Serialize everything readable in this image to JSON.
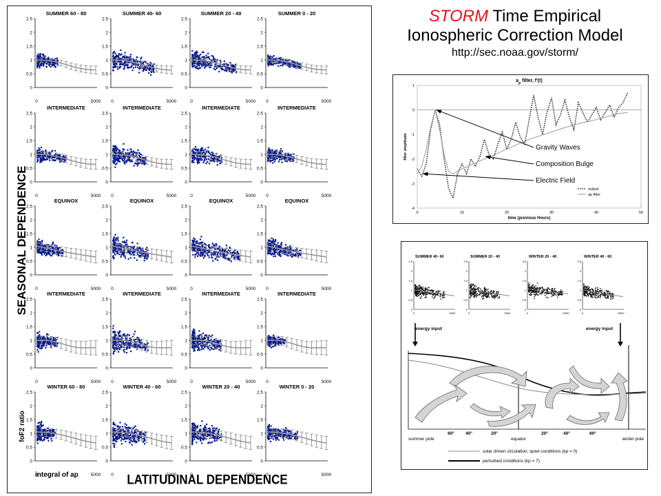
{
  "title": {
    "red_word": "STORM",
    "rest_line1": "Time Empirical",
    "line2": "Ionospheric Correction Model",
    "url": "http://sec.noaa.gov/storm/"
  },
  "left": {
    "row_titles": [
      [
        "SUMMER 60 - 80",
        "SUMMER 40- 60",
        "SUMMER 20 - 40",
        "SUMMER 0 - 20"
      ],
      [
        "INTERMEDIATE",
        "INTERMEDIATE",
        "INTERMEDIATE",
        "INTERMEDIATE"
      ],
      [
        "EQUINOX",
        "EQUINOX",
        "EQUINOX",
        "EQUINOX"
      ],
      [
        "INTERMEDIATE",
        "INTERMEDIATE",
        "INTERMEDIATE",
        "INTERMEDIATE"
      ],
      [
        "WINTER 60 - 80",
        "WINTER 40 - 60",
        "WINTER 20 - 40",
        "WINTER 0 - 20"
      ]
    ],
    "y_ticks": [
      "0",
      "0.5",
      "1",
      "1.5",
      "2",
      "2.5"
    ],
    "x_ticks": [
      "0",
      "5000"
    ],
    "seasonal_label": "SEASONAL DEPENDENCE",
    "latitudinal_label": "LATITUDINAL DEPENDENCE",
    "ylabel": "foF2 ratio",
    "xlabel": "integral of ap"
  },
  "chart_data": [
    {
      "type": "scatter",
      "title": "",
      "xlabel": "integral of ap",
      "ylabel": "foF2 ratio",
      "xlim": [
        0,
        5000
      ],
      "ylim": [
        0,
        2.5
      ],
      "rows": [
        "SUMMER",
        "INTERMEDIATE",
        "EQUINOX",
        "INTERMEDIATE",
        "WINTER"
      ],
      "columns": [
        "60 - 80",
        "40- 60",
        "20 - 40",
        "0 - 20"
      ],
      "series": [
        {
          "name": "data",
          "color": "#0a1a8c"
        },
        {
          "name": "model",
          "color": "#999999"
        }
      ]
    },
    {
      "type": "line",
      "title": "a filter, f'(t)",
      "title_subscript": "p",
      "xlabel": "time (previous Hours)",
      "ylabel": "filter amplitude",
      "xlim": [
        0,
        50
      ],
      "ylim": [
        -4,
        1
      ],
      "x_ticks": [
        "0",
        "10",
        "20",
        "30",
        "40",
        "50"
      ],
      "y_ticks": [
        "1",
        "0",
        "-1",
        "-2",
        "-3",
        "-4"
      ],
      "legend": [
        "output",
        "ap filter"
      ],
      "legend_position": "bottom-right",
      "series": [
        {
          "name": "output",
          "style": "dotted",
          "color": "#222222",
          "x": [
            0,
            1,
            2,
            3,
            4,
            5,
            6,
            7,
            8,
            9,
            10,
            11,
            12,
            13,
            14,
            15,
            16,
            17,
            18,
            19,
            20,
            21,
            22,
            23,
            24,
            25,
            26,
            27,
            28,
            29,
            30,
            31,
            32,
            33,
            34,
            35,
            36,
            37,
            38,
            39,
            40,
            41,
            42,
            43,
            44,
            45,
            46,
            47
          ],
          "y": [
            -2.4,
            -2.7,
            -2.2,
            -0.8,
            0.0,
            -0.6,
            -2.0,
            -3.2,
            -3.6,
            -2.6,
            -2.2,
            -2.6,
            -2.0,
            -2.3,
            -1.9,
            -1.2,
            -1.8,
            -2.0,
            -1.4,
            -0.9,
            -1.6,
            -1.2,
            -0.5,
            -1.1,
            -1.4,
            -0.4,
            0.6,
            -0.3,
            -1.0,
            -0.1,
            0.5,
            -0.6,
            -0.2,
            0.4,
            -0.3,
            -0.8,
            0.3,
            -0.1,
            -0.5,
            -0.2,
            0.1,
            -0.4,
            -0.1,
            0.2,
            -0.3,
            0.1,
            0.3,
            0.7
          ]
        },
        {
          "name": "ap filter",
          "style": "solid",
          "color": "#9a9a9a",
          "x": [
            0,
            1,
            2,
            3,
            4,
            5,
            6,
            7,
            8,
            10,
            15,
            20,
            25,
            30,
            35,
            40,
            45,
            47
          ],
          "y": [
            -2.6,
            -2.3,
            -1.6,
            -0.7,
            0.0,
            -0.8,
            -1.8,
            -2.5,
            -2.6,
            -2.4,
            -2.0,
            -1.6,
            -1.2,
            -0.9,
            -0.6,
            -0.4,
            -0.15,
            -0.1
          ]
        }
      ],
      "annotations": [
        "Gravity Waves",
        "Composition Bulge",
        "Electric Field"
      ]
    },
    {
      "type": "scatter",
      "title": "",
      "panels": [
        "SUMMER 40- 60",
        "SUMMER 20 - 40",
        "WINTER 20 - 40",
        "WINTER 40 - 60"
      ],
      "x_ticks": [
        "0",
        "5000"
      ],
      "y_ticks": [
        "0",
        "0.5",
        "1",
        "1.5",
        "2",
        "2.5"
      ],
      "energy_input": "energy input",
      "latitudes": [
        "60°",
        "40°",
        "20°",
        "20°",
        "40°",
        "60°"
      ],
      "axis_labels": [
        "summer pole",
        "equator",
        "winter pole"
      ],
      "legend": [
        "solar driven circulation, quiet conditions (kp = 0)",
        "perturbed conditions (kp = 7)"
      ],
      "legend_position": "bottom"
    }
  ]
}
